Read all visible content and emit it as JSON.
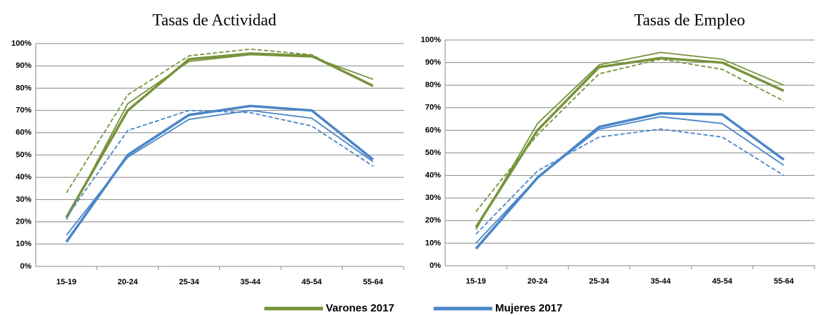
{
  "chart_data": [
    {
      "type": "line",
      "title": "Tasas de Actividad",
      "legend": "bottom",
      "categories": [
        "15-19",
        "20-24",
        "25-34",
        "35-44",
        "45-54",
        "55-64"
      ],
      "ylim": [
        0,
        100
      ],
      "grid": true,
      "yticks": [
        {
          "value": 0,
          "label": "0%"
        },
        {
          "value": 10,
          "label": "10%"
        },
        {
          "value": 20,
          "label": "20%"
        },
        {
          "value": 30,
          "label": "30%"
        },
        {
          "value": 40,
          "label": "40%"
        },
        {
          "value": 50,
          "label": "50%"
        },
        {
          "value": 60,
          "label": "60%"
        },
        {
          "value": 70,
          "label": "70%"
        },
        {
          "value": 80,
          "label": "80%"
        },
        {
          "value": 90,
          "label": "90%"
        },
        {
          "value": 100,
          "label": "100%"
        }
      ],
      "series": [
        {
          "name": "Varones 2017",
          "color": "#77933c",
          "line_style": "thick",
          "values": [
            22,
            70,
            93,
            95.5,
            94.5,
            81
          ]
        },
        {
          "name": "Mujeres 2017",
          "color": "#4a86c8",
          "line_style": "thick",
          "values": [
            11,
            50,
            68,
            72,
            70,
            48
          ]
        },
        {
          "color": "#77933c",
          "line_style": "thin",
          "values": [
            21,
            73,
            92,
            95,
            94,
            84
          ]
        },
        {
          "color": "#77933c",
          "line_style": "dashed",
          "values": [
            33,
            77,
            94.5,
            97.5,
            95,
            81
          ]
        },
        {
          "color": "#4a86c8",
          "line_style": "thin",
          "values": [
            14,
            49,
            66,
            70,
            66.5,
            47
          ]
        },
        {
          "color": "#4a86c8",
          "line_style": "dashed",
          "values": [
            22,
            61,
            70,
            69,
            63,
            45
          ]
        }
      ]
    },
    {
      "type": "line",
      "title": "Tasas de Empleo",
      "categories": [
        "15-19",
        "20-24",
        "25-34",
        "35-44",
        "45-54",
        "55-64"
      ],
      "ylim": [
        0,
        100
      ],
      "grid": true,
      "yticks": [
        {
          "value": 0,
          "label": "0%"
        },
        {
          "value": 10,
          "label": "10%"
        },
        {
          "value": 20,
          "label": "20%"
        },
        {
          "value": 30,
          "label": "30%"
        },
        {
          "value": 40,
          "label": "40%"
        },
        {
          "value": 50,
          "label": "50%"
        },
        {
          "value": 60,
          "label": "60%"
        },
        {
          "value": 70,
          "label": "70%"
        },
        {
          "value": 80,
          "label": "80%"
        },
        {
          "value": 90,
          "label": "90%"
        },
        {
          "value": 100,
          "label": "100%"
        }
      ],
      "series": [
        {
          "color": "#77933c",
          "line_style": "thick",
          "values": [
            17,
            60,
            88,
            92,
            90,
            77.5
          ]
        },
        {
          "color": "#4a86c8",
          "line_style": "thick",
          "values": [
            7.5,
            39,
            61.5,
            67.5,
            67,
            47
          ]
        },
        {
          "color": "#77933c",
          "line_style": "thin",
          "values": [
            16,
            63,
            89,
            94.5,
            91.5,
            80
          ]
        },
        {
          "color": "#77933c",
          "line_style": "dashed",
          "values": [
            24,
            58,
            85,
            91.5,
            87,
            73
          ]
        },
        {
          "color": "#4a86c8",
          "line_style": "thin",
          "values": [
            10,
            39,
            60.5,
            66,
            63,
            44.5
          ]
        },
        {
          "color": "#4a86c8",
          "line_style": "dashed",
          "values": [
            14,
            42,
            57,
            60.5,
            57,
            40
          ]
        }
      ]
    }
  ]
}
